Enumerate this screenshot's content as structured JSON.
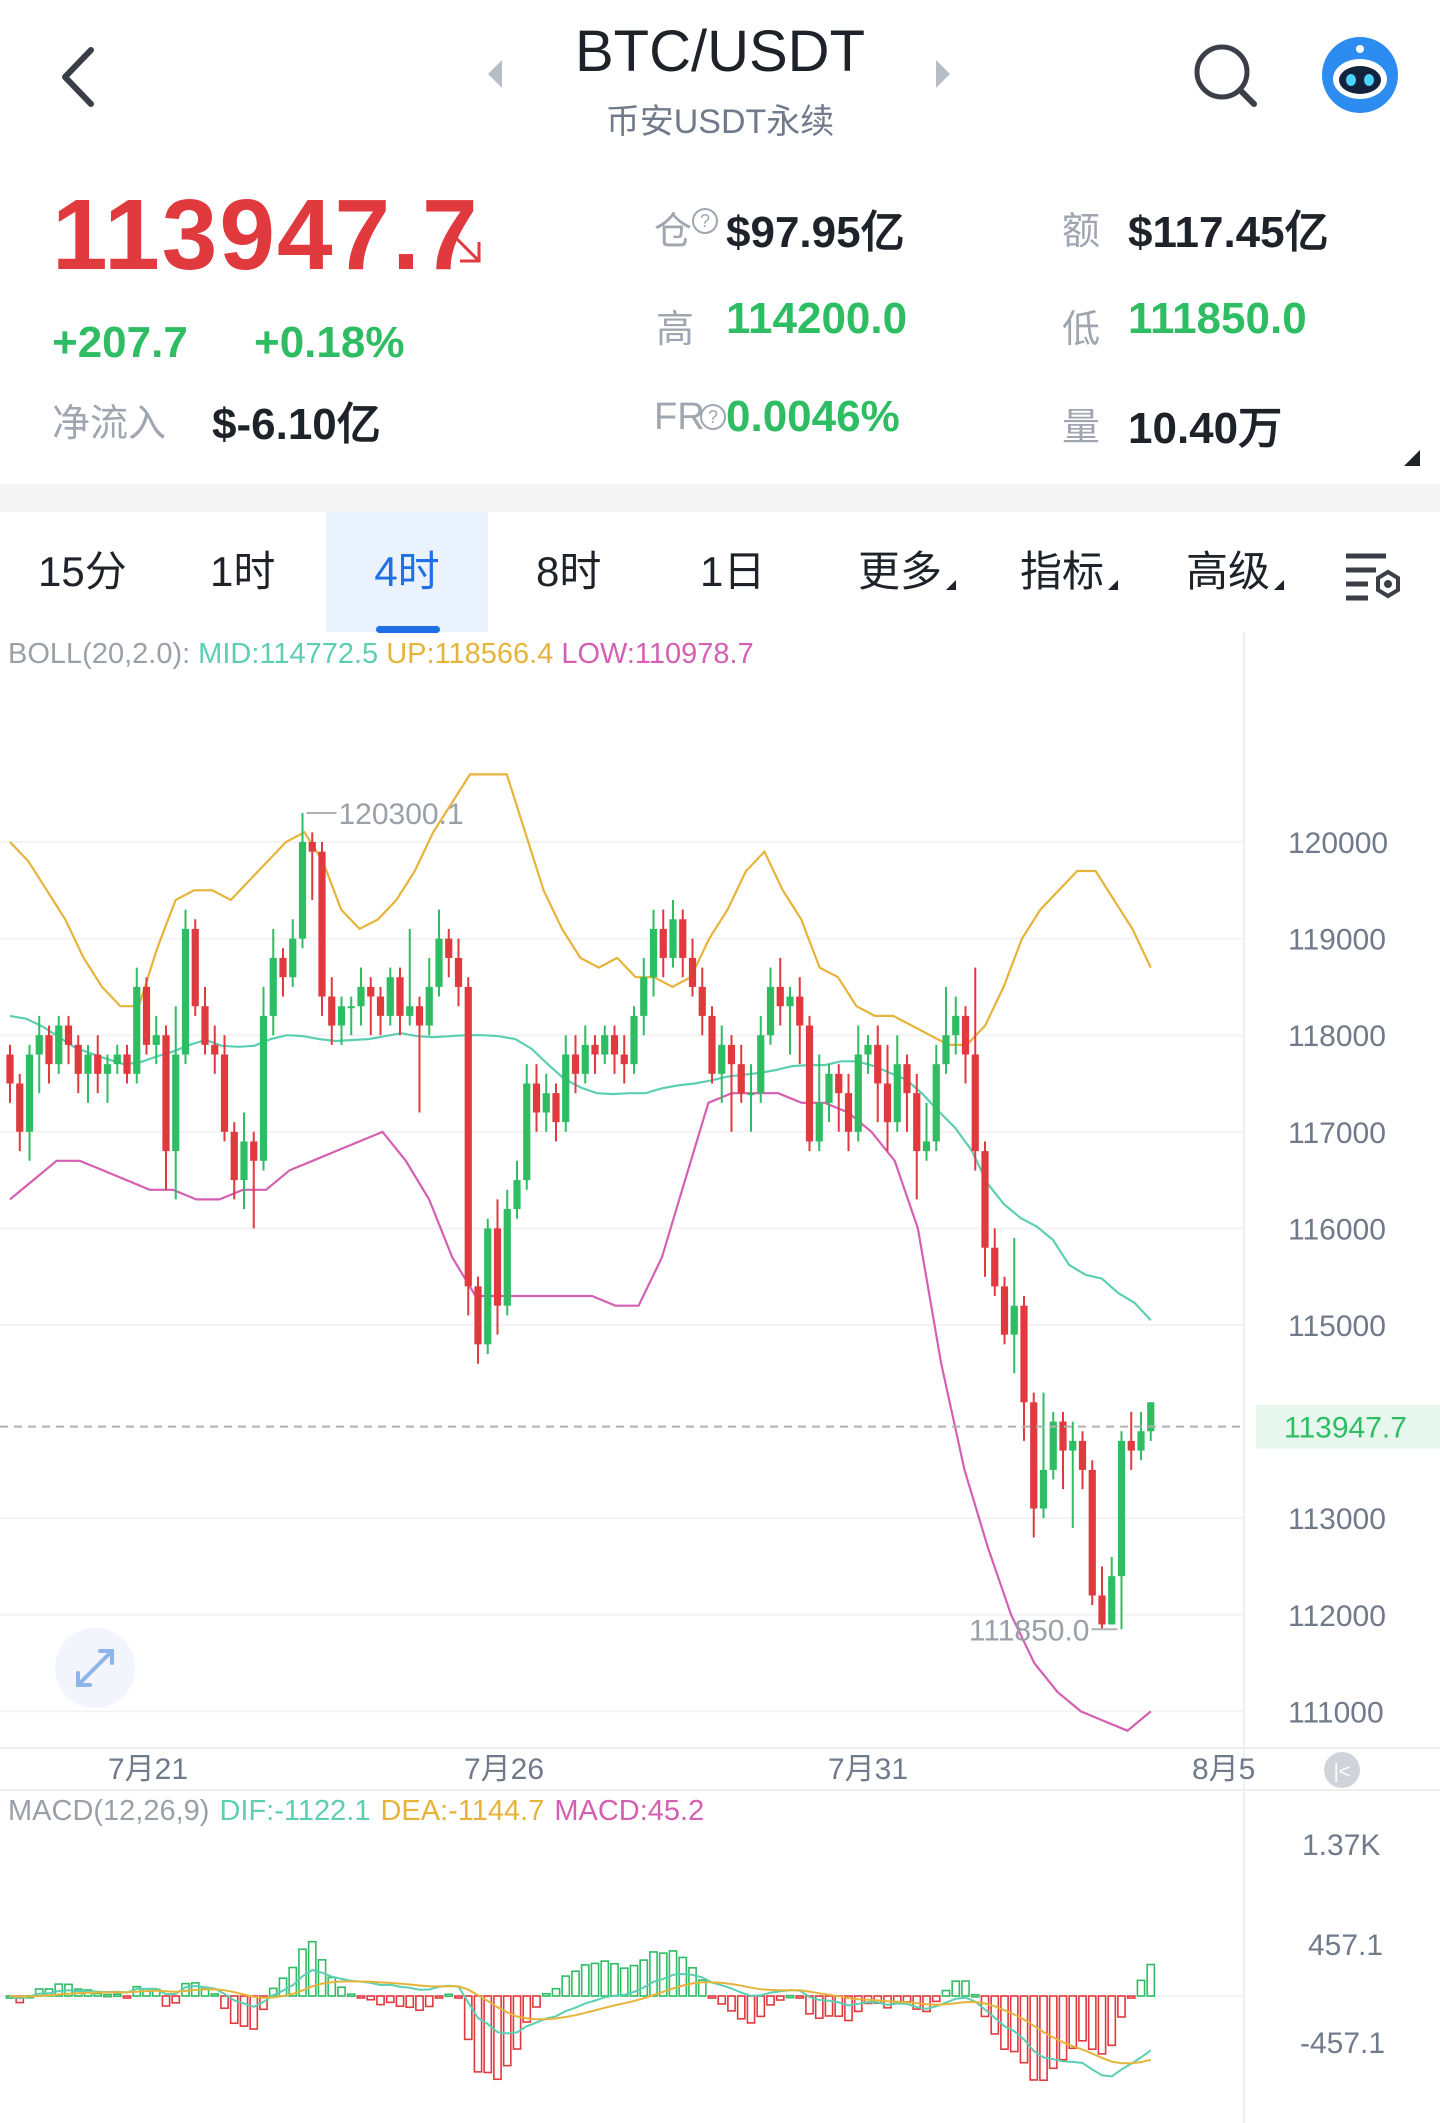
{
  "header": {
    "title": "BTC/USDT",
    "subtitle": "币安USDT永续"
  },
  "ticker": {
    "price": "113947.7",
    "change": "+207.7",
    "change_pct": "+0.18%",
    "net_inflow_label": "净流入",
    "net_inflow_value": "$-6.10亿",
    "open_interest_label": "仓",
    "open_interest_value": "$97.95亿",
    "turnover_label": "额",
    "turnover_value": "$117.45亿",
    "high_label": "高",
    "high_value": "114200.0",
    "low_label": "低",
    "low_value": "111850.0",
    "fr_label": "FR",
    "fr_value": "0.0046%",
    "volume_label": "量",
    "volume_value": "10.40万"
  },
  "tabs": [
    {
      "label": "15分",
      "active": false
    },
    {
      "label": "1时",
      "active": false
    },
    {
      "label": "4时",
      "active": true
    },
    {
      "label": "8时",
      "active": false
    },
    {
      "label": "1日",
      "active": false
    },
    {
      "label": "更多",
      "active": false
    },
    {
      "label": "指标",
      "active": false
    },
    {
      "label": "高级",
      "active": false
    }
  ],
  "colors": {
    "up": "#2ebd63",
    "down": "#e0393e",
    "mid": "#5ccfb3",
    "upper": "#e6b43a",
    "lower": "#d55fb2",
    "accent": "#1e6fe8"
  },
  "icons": [
    "back-icon",
    "caret-left-icon",
    "caret-right-icon",
    "search-icon",
    "robot-avatar-icon",
    "fullscreen-icon",
    "chart-settings-icon",
    "go-latest-icon"
  ],
  "chart_data": [
    {
      "type": "candlestick",
      "indicator": {
        "name": "BOLL(20,2.0):",
        "mid_label": "MID:114772.5",
        "up_label": "UP:118566.4",
        "low_label": "LOW:110978.7"
      },
      "y_ticks": [
        "120000",
        "119000",
        "118000",
        "117000",
        "116000",
        "115000",
        "113000",
        "112000",
        "111000"
      ],
      "ylim": [
        110700,
        121500
      ],
      "x_ticks": [
        "7月21",
        "7月26",
        "7月31",
        "8月5"
      ],
      "current_price": "113947.7",
      "high_marker": "120300.1",
      "low_marker": "111850.0",
      "candles": [
        [
          117800,
          117500,
          117900,
          117300
        ],
        [
          117500,
          117000,
          117600,
          116800
        ],
        [
          117000,
          117800,
          117900,
          116700
        ],
        [
          117800,
          118000,
          118200,
          117400
        ],
        [
          118000,
          117700,
          118100,
          117500
        ],
        [
          117700,
          118100,
          118200,
          117600
        ],
        [
          118100,
          117900,
          118200,
          117700
        ],
        [
          117900,
          117600,
          118000,
          117400
        ],
        [
          117600,
          117800,
          117900,
          117300
        ],
        [
          117800,
          117600,
          118000,
          117400
        ],
        [
          117600,
          117700,
          117800,
          117300
        ],
        [
          117700,
          117800,
          117900,
          117600
        ],
        [
          117800,
          117600,
          117900,
          117500
        ],
        [
          117600,
          118500,
          118700,
          117500
        ],
        [
          118500,
          117900,
          118600,
          117800
        ],
        [
          117900,
          118000,
          118200,
          117700
        ],
        [
          118000,
          116800,
          118100,
          116400
        ],
        [
          116800,
          117800,
          118300,
          116300
        ],
        [
          117800,
          119100,
          119300,
          117700
        ],
        [
          119100,
          118300,
          119200,
          118200
        ],
        [
          118300,
          117900,
          118500,
          117800
        ],
        [
          117900,
          117800,
          118100,
          117600
        ],
        [
          117800,
          117000,
          118000,
          116900
        ],
        [
          117000,
          116500,
          117100,
          116300
        ],
        [
          116500,
          116900,
          117200,
          116200
        ],
        [
          116900,
          116700,
          117000,
          116000
        ],
        [
          116700,
          118200,
          118500,
          116600
        ],
        [
          118200,
          118800,
          119100,
          118000
        ],
        [
          118800,
          118600,
          118900,
          118400
        ],
        [
          118600,
          119000,
          119200,
          118500
        ],
        [
          119000,
          120000,
          120300,
          118900
        ],
        [
          120000,
          119900,
          120100,
          119400
        ],
        [
          119900,
          118400,
          120000,
          118200
        ],
        [
          118400,
          118100,
          118600,
          117900
        ],
        [
          118100,
          118300,
          118400,
          117900
        ],
        [
          118300,
          118300,
          118400,
          118000
        ],
        [
          118300,
          118500,
          118700,
          118100
        ],
        [
          118500,
          118400,
          118600,
          118000
        ],
        [
          118400,
          118200,
          118500,
          118000
        ],
        [
          118200,
          118600,
          118700,
          118100
        ],
        [
          118600,
          118200,
          118700,
          118000
        ],
        [
          118200,
          118300,
          119100,
          118100
        ],
        [
          118300,
          118100,
          118400,
          117200
        ],
        [
          118100,
          118500,
          118800,
          118000
        ],
        [
          118500,
          119000,
          119300,
          118400
        ],
        [
          119000,
          118800,
          119100,
          118600
        ],
        [
          118800,
          118500,
          119000,
          118300
        ],
        [
          118500,
          115400,
          118600,
          115100
        ],
        [
          115400,
          114800,
          115500,
          114600
        ],
        [
          114800,
          116000,
          116100,
          114700
        ],
        [
          116000,
          115200,
          116300,
          114900
        ],
        [
          115200,
          116200,
          116400,
          115100
        ],
        [
          116200,
          116500,
          116700,
          116100
        ],
        [
          116500,
          117500,
          117700,
          116400
        ],
        [
          117500,
          117200,
          117700,
          117000
        ],
        [
          117200,
          117400,
          117600,
          117000
        ],
        [
          117400,
          117100,
          117500,
          116900
        ],
        [
          117100,
          117800,
          118000,
          117000
        ],
        [
          117800,
          117600,
          118000,
          117400
        ],
        [
          117600,
          117900,
          118100,
          117500
        ],
        [
          117900,
          117800,
          118000,
          117600
        ],
        [
          117800,
          118000,
          118100,
          117700
        ],
        [
          118000,
          117800,
          118100,
          117600
        ],
        [
          117800,
          117700,
          118000,
          117500
        ],
        [
          117700,
          118200,
          118300,
          117600
        ],
        [
          118200,
          118600,
          118800,
          118000
        ],
        [
          118600,
          119100,
          119300,
          118400
        ],
        [
          119100,
          118800,
          119300,
          118600
        ],
        [
          118800,
          119200,
          119400,
          118700
        ],
        [
          119200,
          118800,
          119300,
          118600
        ],
        [
          118800,
          118500,
          119000,
          118400
        ],
        [
          118500,
          118200,
          118700,
          118000
        ],
        [
          118200,
          117600,
          118300,
          117500
        ],
        [
          117600,
          117900,
          118100,
          117300
        ],
        [
          117900,
          117700,
          118000,
          117000
        ],
        [
          117700,
          117400,
          117900,
          117300
        ],
        [
          117400,
          117400,
          117700,
          117000
        ],
        [
          117400,
          118000,
          118200,
          117300
        ],
        [
          118000,
          118500,
          118700,
          117900
        ],
        [
          118500,
          118300,
          118800,
          118100
        ],
        [
          118300,
          118400,
          118500,
          117800
        ],
        [
          118400,
          118100,
          118600,
          117700
        ],
        [
          118100,
          116900,
          118200,
          116800
        ],
        [
          116900,
          117300,
          117800,
          116800
        ],
        [
          117300,
          117600,
          117700,
          117100
        ],
        [
          117600,
          117400,
          117700,
          117000
        ],
        [
          117400,
          117000,
          117600,
          116800
        ],
        [
          117000,
          117800,
          118100,
          116900
        ],
        [
          117800,
          117900,
          118000,
          117600
        ],
        [
          117900,
          117500,
          118100,
          117100
        ],
        [
          117500,
          117100,
          117900,
          116800
        ],
        [
          117100,
          117700,
          118000,
          117000
        ],
        [
          117700,
          117400,
          117800,
          117000
        ],
        [
          117400,
          116800,
          117600,
          116300
        ],
        [
          116800,
          116900,
          117300,
          116700
        ],
        [
          116900,
          117700,
          117900,
          116800
        ],
        [
          117700,
          118000,
          118500,
          117600
        ],
        [
          118000,
          118200,
          118400,
          117800
        ],
        [
          118200,
          117800,
          118300,
          117500
        ],
        [
          117800,
          116800,
          118700,
          116600
        ],
        [
          116800,
          115800,
          116900,
          115500
        ],
        [
          115800,
          115400,
          116000,
          115300
        ],
        [
          115400,
          114900,
          115500,
          114800
        ],
        [
          114900,
          115200,
          115900,
          114500
        ],
        [
          115200,
          114200,
          115300,
          113800
        ],
        [
          114200,
          113100,
          114300,
          112800
        ],
        [
          113100,
          113500,
          114300,
          113000
        ],
        [
          113500,
          114000,
          114100,
          113400
        ],
        [
          114000,
          113700,
          114100,
          113300
        ],
        [
          113700,
          113800,
          114000,
          112900
        ],
        [
          113800,
          113500,
          113900,
          113300
        ],
        [
          113500,
          112200,
          113600,
          112100
        ],
        [
          112200,
          111900,
          112500,
          111850
        ],
        [
          111900,
          112400,
          112600,
          111900
        ],
        [
          112400,
          113800,
          113900,
          111850
        ],
        [
          113800,
          113700,
          114100,
          113500
        ],
        [
          113700,
          113900,
          114100,
          113600
        ],
        [
          113900,
          114200,
          114200,
          113800
        ]
      ],
      "boll_mid": [
        118200,
        118170,
        118090,
        117980,
        117870,
        117810,
        117750,
        117700,
        117720,
        117780,
        117830,
        117900,
        117950,
        117890,
        117880,
        117890,
        117960,
        118000,
        117990,
        117960,
        117940,
        117950,
        117960,
        117990,
        118020,
        117990,
        117980,
        117990,
        118000,
        118000,
        117990,
        117960,
        117860,
        117700,
        117550,
        117460,
        117400,
        117390,
        117400,
        117400,
        117450,
        117480,
        117500,
        117530,
        117570,
        117590,
        117610,
        117640,
        117680,
        117690,
        117690,
        117730,
        117730,
        117680,
        117610,
        117540,
        117390,
        117210,
        117040,
        116810,
        116460,
        116250,
        116110,
        116020,
        115880,
        115620,
        115520,
        115480,
        115330,
        115230,
        115050
      ],
      "boll_up": [
        120000,
        119800,
        119500,
        119200,
        118800,
        118500,
        118300,
        118300,
        118900,
        119400,
        119500,
        119500,
        119400,
        119600,
        119800,
        120000,
        120100,
        119800,
        119300,
        119100,
        119200,
        119400,
        119700,
        120100,
        120400,
        120700,
        120700,
        120700,
        120100,
        119500,
        119100,
        118800,
        118700,
        118800,
        118600,
        118600,
        118500,
        118600,
        119000,
        119300,
        119700,
        119900,
        119500,
        119200,
        118700,
        118600,
        118300,
        118200,
        118200,
        118100,
        118000,
        117900,
        117900,
        118100,
        118500,
        119000,
        119300,
        119500,
        119700,
        119700,
        119400,
        119100,
        118700
      ],
      "boll_low": [
        116300,
        116500,
        116700,
        116700,
        116600,
        116500,
        116400,
        116400,
        116300,
        116300,
        116400,
        116400,
        116600,
        116700,
        116800,
        116900,
        117000,
        116700,
        116300,
        115700,
        115300,
        115300,
        115300,
        115300,
        115300,
        115300,
        115200,
        115200,
        115700,
        116500,
        117300,
        117400,
        117400,
        117400,
        117300,
        117300,
        117200,
        117000,
        116700,
        116000,
        114600,
        113500,
        112700,
        112000,
        111500,
        111200,
        111000,
        110900,
        110800,
        111000
      ],
      "macd": {
        "label": "MACD(12,26,9)",
        "dif_label": "DIF:-1122.1",
        "dea_label": "DEA:-1144.7",
        "macd_label": "MACD:45.2",
        "y_ticks": [
          "1.37K",
          "457.1",
          "-457.1"
        ]
      }
    }
  ]
}
